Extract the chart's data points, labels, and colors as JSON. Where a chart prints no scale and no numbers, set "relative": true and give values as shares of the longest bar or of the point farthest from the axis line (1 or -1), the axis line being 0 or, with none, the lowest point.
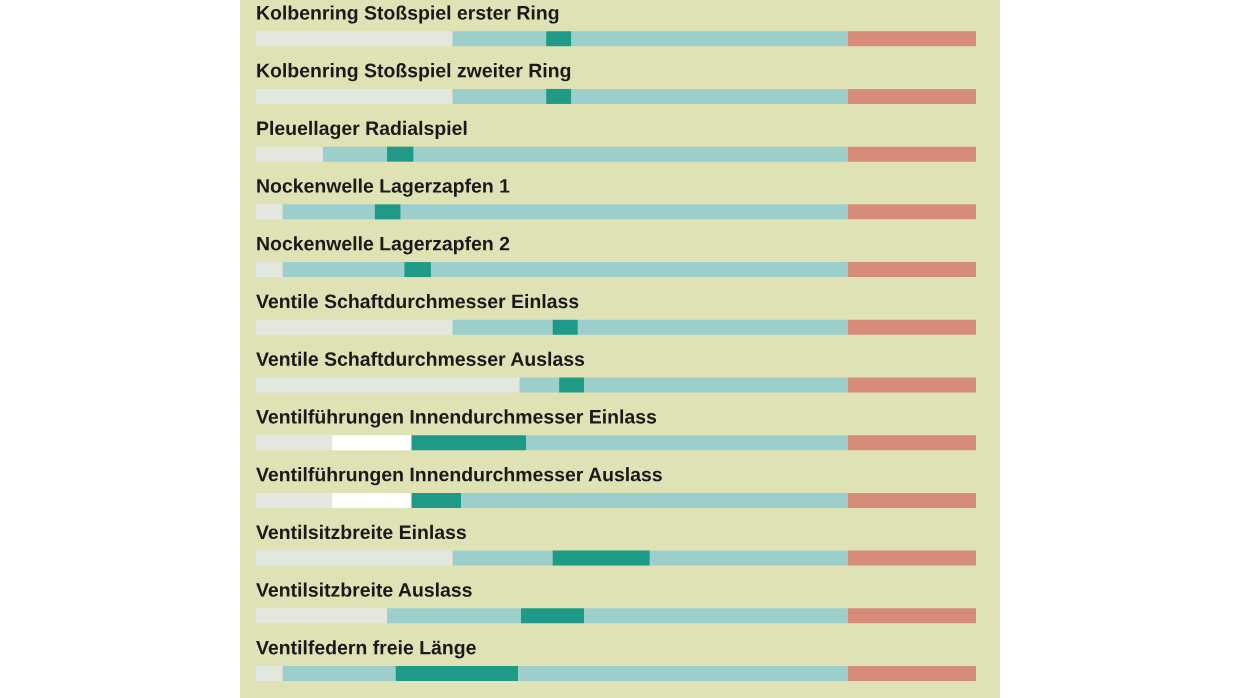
{
  "chart_data": {
    "type": "bar",
    "orientation": "horizontal",
    "stacked": true,
    "relative": true,
    "categories": [
      "Kolbenring Stoßspiel erster Ring",
      "Kolbenring Stoßspiel zweiter Ring",
      "Pleuellager Radialspiel",
      "Nockenwelle Lagerzapfen 1",
      "Nockenwelle Lagerzapfen 2",
      "Ventile Schaftdurchmesser Einlass",
      "Ventile Schaftdurchmesser Auslass",
      "Ventilführungen Innendurchmesser Einlass",
      "Ventilführungen Innendurchmesser Auslass",
      "Ventilsitzbreite Einlass",
      "Ventilsitzbreite Auslass",
      "Ventilfedern freie Länge"
    ],
    "series": [
      {
        "color": "#e4e6e0",
        "values": [
          0.273,
          0.273,
          0.093,
          0.037,
          0.037,
          0.273,
          0.366,
          0.106,
          0.106,
          0.273,
          0.182,
          0.037
        ]
      },
      {
        "colors": [
          "#9ccfcb",
          "#9ccfcb",
          "#9ccfcb",
          "#9ccfcb",
          "#9ccfcb",
          "#9ccfcb",
          "#9ccfcb",
          "#ffffff",
          "#ffffff",
          "#9ccfcb",
          "#9ccfcb",
          "#9ccfcb"
        ],
        "values": [
          0.13,
          0.13,
          0.089,
          0.128,
          0.169,
          0.139,
          0.055,
          0.11,
          0.11,
          0.139,
          0.186,
          0.157
        ]
      },
      {
        "color": "#1f9a88",
        "values": [
          0.035,
          0.035,
          0.037,
          0.036,
          0.037,
          0.035,
          0.035,
          0.159,
          0.069,
          0.135,
          0.088,
          0.17
        ]
      },
      {
        "color": "#9ccfcb",
        "values": [
          0.384,
          0.384,
          0.603,
          0.621,
          0.579,
          0.375,
          0.366,
          0.447,
          0.537,
          0.275,
          0.366,
          0.458
        ]
      },
      {
        "color": "#d68b7c",
        "values": [
          0.178,
          0.178,
          0.178,
          0.178,
          0.178,
          0.178,
          0.178,
          0.178,
          0.178,
          0.178,
          0.178,
          0.178
        ]
      }
    ]
  }
}
